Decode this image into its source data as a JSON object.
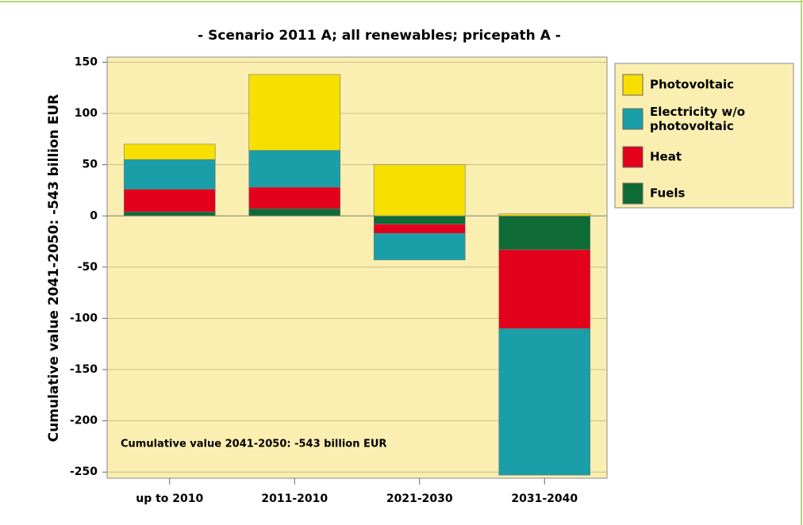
{
  "chart_data": {
    "type": "stacked_bar",
    "title": "- Scenario 2011 A; all renewables; pricepath A -",
    "y_label": "Cumulative value 2041-2050: -543 billion EUR",
    "annotation": "Cumulative value 2041-2050: -543 billion EUR",
    "categories": [
      "up to 2010",
      "2011-2010",
      "2021-2030",
      "2031-2040"
    ],
    "series": [
      {
        "name": "Photovoltaic",
        "color": "#f7e000",
        "values": [
          15,
          74,
          50,
          2
        ]
      },
      {
        "name": "Electricity w/o photovoltaic",
        "color": "#1a9ea8",
        "values": [
          29,
          36,
          -26,
          -143
        ]
      },
      {
        "name": "Heat",
        "color": "#e3001b",
        "values": [
          22,
          21,
          -9,
          -77
        ]
      },
      {
        "name": "Fuels",
        "color": "#0e6b35",
        "values": [
          4,
          7,
          -8,
          -33
        ]
      }
    ],
    "ylim": [
      -256,
      155
    ],
    "yticks": [
      150,
      100,
      50,
      0,
      -50,
      -100,
      -150,
      -200,
      -250
    ],
    "grid": true
  }
}
